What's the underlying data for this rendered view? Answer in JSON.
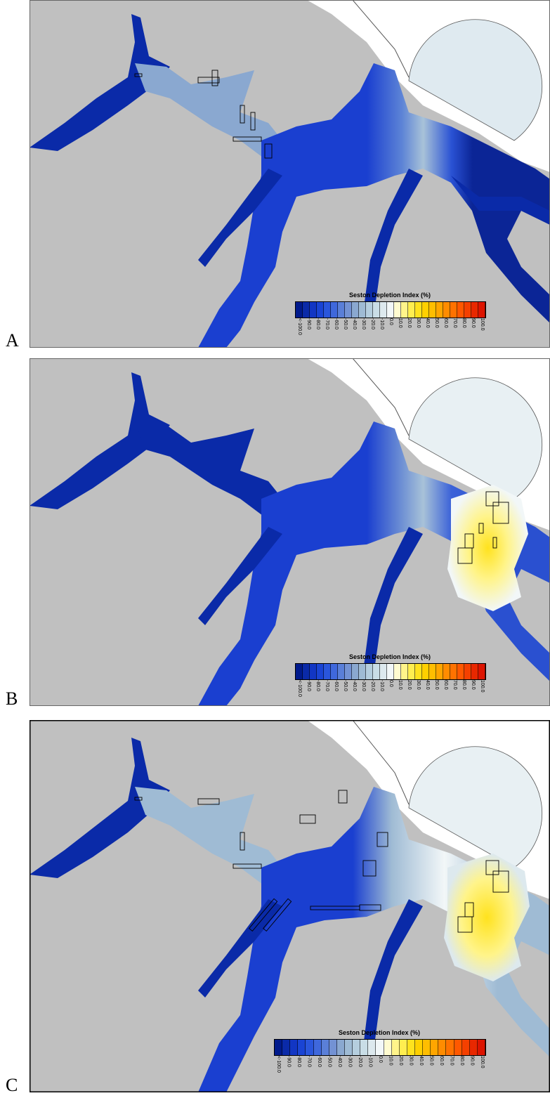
{
  "panels": [
    {
      "letter": "A",
      "legend_title": "Seston Depletion Index (%)"
    },
    {
      "letter": "B",
      "legend_title": "Seston Depletion Index (%)"
    },
    {
      "letter": "C",
      "legend_title": "Seston Depletion Index (%)"
    }
  ],
  "legend": {
    "tick_labels": [
      "<-100.0",
      "-90.0",
      "-80.0",
      "-70.0",
      "-60.0",
      "-50.0",
      "-40.0",
      "-30.0",
      "-20.0",
      "-10.0",
      "0.0",
      "10.0",
      "20.0",
      "30.0",
      "40.0",
      "50.0",
      "60.0",
      "70.0",
      "80.0",
      "90.0",
      "100.0"
    ],
    "colors": [
      "#001a8c",
      "#0a2aa8",
      "#1236c4",
      "#1a44d4",
      "#2a56dc",
      "#3f68dc",
      "#5a7fd8",
      "#7392d4",
      "#8aa8d0",
      "#9fbbd4",
      "#b5cede",
      "#c9dde6",
      "#dde9ee",
      "#f2f7f8",
      "#fffbd0",
      "#fff48a",
      "#ffee50",
      "#ffe21e",
      "#ffd000",
      "#ffbe00",
      "#ffa600",
      "#ff8c00",
      "#ff7200",
      "#ff5800",
      "#f44000",
      "#e82800",
      "#dc1400"
    ]
  },
  "colors": {
    "land": "#c0c0c0",
    "sea": "#ffffff",
    "outline": "#555555"
  }
}
